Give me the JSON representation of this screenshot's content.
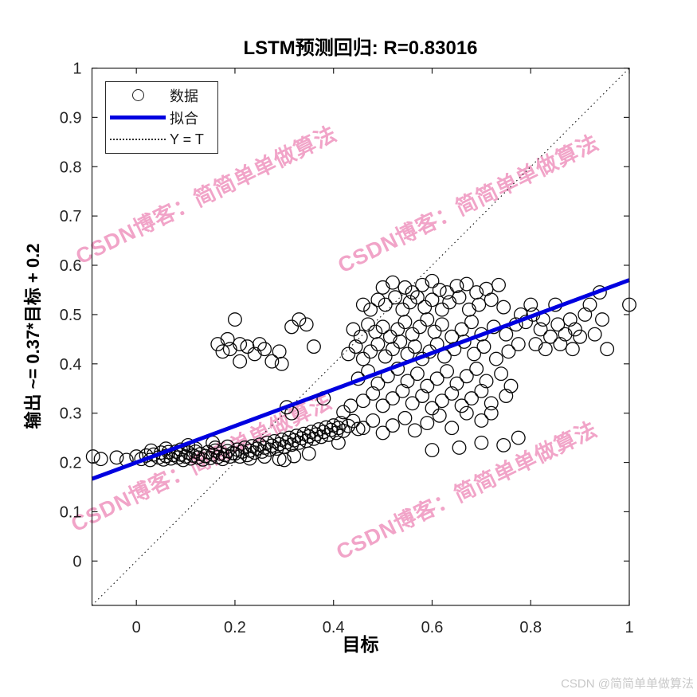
{
  "watermark": {
    "text": "CSDN博客：简简单单做算法",
    "color": "#EE94BE"
  },
  "attribution": "CSDN @简简单单做算法",
  "legend": {
    "items": [
      {
        "label": "数据",
        "marker": "circle-icon"
      },
      {
        "label": "拟合",
        "marker": "line-icon"
      },
      {
        "label": "Y = T",
        "marker": "dotted-line-icon"
      }
    ]
  },
  "chart_data": {
    "type": "scatter",
    "title": "LSTM预测回归: R=0.83016",
    "xlabel": "目标",
    "ylabel": "输出 ~= 0.37*目标 + 0.2",
    "xlim": [
      -0.09,
      1.0
    ],
    "ylim": [
      -0.09,
      1.0
    ],
    "grid": false,
    "legend_position": "top-left",
    "xticks": {
      "values": [
        0,
        0.2,
        0.4,
        0.6,
        0.8,
        1
      ],
      "labels": [
        "0",
        "0.2",
        "0.4",
        "0.6",
        "0.8",
        "1"
      ]
    },
    "yticks": {
      "values": [
        0,
        0.1,
        0.2,
        0.3,
        0.4,
        0.5,
        0.6,
        0.7,
        0.8,
        0.9,
        1
      ],
      "labels": [
        "0",
        "0.1",
        "0.2",
        "0.3",
        "0.4",
        "0.5",
        "0.6",
        "0.7",
        "0.8",
        "0.9",
        "1"
      ]
    },
    "fit": {
      "label": "拟合",
      "slope": 0.37,
      "intercept": 0.2,
      "color": "#0000e0",
      "width": 5
    },
    "identity": {
      "label": "Y = T",
      "color": "#222222"
    },
    "marker": {
      "color": "#0a0a0a",
      "radius": 8.3,
      "stroke_width": 1.3
    },
    "series": [
      {
        "name": "数据",
        "points": [
          [
            -0.088,
            0.212
          ],
          [
            -0.072,
            0.207
          ],
          [
            -0.04,
            0.21
          ],
          [
            -0.02,
            0.205
          ],
          [
            0.0,
            0.212
          ],
          [
            0.01,
            0.207
          ],
          [
            0.02,
            0.214
          ],
          [
            0.028,
            0.205
          ],
          [
            0.035,
            0.216
          ],
          [
            0.045,
            0.21
          ],
          [
            0.05,
            0.22
          ],
          [
            0.055,
            0.206
          ],
          [
            0.06,
            0.213
          ],
          [
            0.065,
            0.221
          ],
          [
            0.07,
            0.208
          ],
          [
            0.075,
            0.215
          ],
          [
            0.08,
            0.222
          ],
          [
            0.085,
            0.21
          ],
          [
            0.09,
            0.216
          ],
          [
            0.095,
            0.205
          ],
          [
            0.1,
            0.212
          ],
          [
            0.105,
            0.22
          ],
          [
            0.11,
            0.208
          ],
          [
            0.115,
            0.214
          ],
          [
            0.12,
            0.222
          ],
          [
            0.125,
            0.21
          ],
          [
            0.13,
            0.217
          ],
          [
            0.135,
            0.206
          ],
          [
            0.14,
            0.213
          ],
          [
            0.145,
            0.221
          ],
          [
            0.15,
            0.209
          ],
          [
            0.155,
            0.216
          ],
          [
            0.16,
            0.224
          ],
          [
            0.165,
            0.211
          ],
          [
            0.17,
            0.218
          ],
          [
            0.175,
            0.207
          ],
          [
            0.18,
            0.215
          ],
          [
            0.185,
            0.223
          ],
          [
            0.19,
            0.212
          ],
          [
            0.195,
            0.219
          ],
          [
            0.03,
            0.224
          ],
          [
            0.06,
            0.228
          ],
          [
            0.09,
            0.226
          ],
          [
            0.12,
            0.228
          ],
          [
            0.16,
            0.23
          ],
          [
            0.185,
            0.232
          ],
          [
            0.155,
            0.24
          ],
          [
            0.105,
            0.235
          ],
          [
            0.2,
            0.218
          ],
          [
            0.205,
            0.226
          ],
          [
            0.21,
            0.212
          ],
          [
            0.215,
            0.222
          ],
          [
            0.22,
            0.23
          ],
          [
            0.225,
            0.215
          ],
          [
            0.23,
            0.224
          ],
          [
            0.235,
            0.233
          ],
          [
            0.24,
            0.22
          ],
          [
            0.245,
            0.228
          ],
          [
            0.25,
            0.236
          ],
          [
            0.255,
            0.222
          ],
          [
            0.26,
            0.23
          ],
          [
            0.265,
            0.24
          ],
          [
            0.27,
            0.226
          ],
          [
            0.275,
            0.234
          ],
          [
            0.28,
            0.243
          ],
          [
            0.285,
            0.228
          ],
          [
            0.29,
            0.237
          ],
          [
            0.295,
            0.246
          ],
          [
            0.3,
            0.232
          ],
          [
            0.305,
            0.241
          ],
          [
            0.31,
            0.25
          ],
          [
            0.315,
            0.236
          ],
          [
            0.32,
            0.245
          ],
          [
            0.325,
            0.254
          ],
          [
            0.33,
            0.24
          ],
          [
            0.335,
            0.249
          ],
          [
            0.34,
            0.258
          ],
          [
            0.345,
            0.244
          ],
          [
            0.35,
            0.253
          ],
          [
            0.355,
            0.262
          ],
          [
            0.36,
            0.248
          ],
          [
            0.365,
            0.257
          ],
          [
            0.37,
            0.267
          ],
          [
            0.375,
            0.252
          ],
          [
            0.38,
            0.262
          ],
          [
            0.385,
            0.271
          ],
          [
            0.39,
            0.256
          ],
          [
            0.395,
            0.266
          ],
          [
            0.4,
            0.275
          ],
          [
            0.405,
            0.26
          ],
          [
            0.41,
            0.27
          ],
          [
            0.415,
            0.28
          ],
          [
            0.42,
            0.264
          ],
          [
            0.43,
            0.274
          ],
          [
            0.44,
            0.284
          ],
          [
            0.45,
            0.268
          ],
          [
            0.305,
            0.312
          ],
          [
            0.315,
            0.3
          ],
          [
            0.42,
            0.302
          ],
          [
            0.435,
            0.315
          ],
          [
            0.38,
            0.33
          ],
          [
            0.23,
            0.208
          ],
          [
            0.26,
            0.212
          ],
          [
            0.29,
            0.207
          ],
          [
            0.32,
            0.213
          ],
          [
            0.35,
            0.218
          ],
          [
            0.3,
            0.205
          ],
          [
            0.41,
            0.24
          ],
          [
            0.165,
            0.44
          ],
          [
            0.175,
            0.425
          ],
          [
            0.185,
            0.45
          ],
          [
            0.19,
            0.43
          ],
          [
            0.2,
            0.49
          ],
          [
            0.21,
            0.44
          ],
          [
            0.225,
            0.435
          ],
          [
            0.24,
            0.42
          ],
          [
            0.25,
            0.44
          ],
          [
            0.26,
            0.43
          ],
          [
            0.275,
            0.405
          ],
          [
            0.29,
            0.425
          ],
          [
            0.315,
            0.475
          ],
          [
            0.33,
            0.49
          ],
          [
            0.345,
            0.48
          ],
          [
            0.36,
            0.435
          ],
          [
            0.295,
            0.4
          ],
          [
            0.21,
            0.405
          ],
          [
            0.5,
            0.555
          ],
          [
            0.52,
            0.565
          ],
          [
            0.545,
            0.555
          ],
          [
            0.56,
            0.545
          ],
          [
            0.58,
            0.56
          ],
          [
            0.6,
            0.568
          ],
          [
            0.615,
            0.55
          ],
          [
            0.63,
            0.545
          ],
          [
            0.65,
            0.558
          ],
          [
            0.67,
            0.562
          ],
          [
            0.69,
            0.545
          ],
          [
            0.71,
            0.552
          ],
          [
            0.735,
            0.56
          ],
          [
            0.46,
            0.52
          ],
          [
            0.475,
            0.51
          ],
          [
            0.49,
            0.53
          ],
          [
            0.505,
            0.52
          ],
          [
            0.525,
            0.535
          ],
          [
            0.54,
            0.51
          ],
          [
            0.555,
            0.525
          ],
          [
            0.57,
            0.535
          ],
          [
            0.585,
            0.515
          ],
          [
            0.6,
            0.53
          ],
          [
            0.62,
            0.51
          ],
          [
            0.635,
            0.525
          ],
          [
            0.655,
            0.535
          ],
          [
            0.675,
            0.51
          ],
          [
            0.695,
            0.52
          ],
          [
            0.72,
            0.53
          ],
          [
            0.745,
            0.515
          ],
          [
            0.44,
            0.47
          ],
          [
            0.455,
            0.455
          ],
          [
            0.47,
            0.48
          ],
          [
            0.485,
            0.465
          ],
          [
            0.5,
            0.475
          ],
          [
            0.515,
            0.455
          ],
          [
            0.53,
            0.47
          ],
          [
            0.545,
            0.485
          ],
          [
            0.56,
            0.46
          ],
          [
            0.575,
            0.475
          ],
          [
            0.59,
            0.49
          ],
          [
            0.605,
            0.465
          ],
          [
            0.62,
            0.48
          ],
          [
            0.64,
            0.455
          ],
          [
            0.66,
            0.47
          ],
          [
            0.68,
            0.485
          ],
          [
            0.7,
            0.46
          ],
          [
            0.725,
            0.475
          ],
          [
            0.75,
            0.46
          ],
          [
            0.77,
            0.48
          ],
          [
            0.43,
            0.42
          ],
          [
            0.445,
            0.435
          ],
          [
            0.46,
            0.41
          ],
          [
            0.475,
            0.425
          ],
          [
            0.49,
            0.44
          ],
          [
            0.505,
            0.415
          ],
          [
            0.52,
            0.43
          ],
          [
            0.535,
            0.445
          ],
          [
            0.55,
            0.42
          ],
          [
            0.565,
            0.435
          ],
          [
            0.58,
            0.41
          ],
          [
            0.595,
            0.425
          ],
          [
            0.61,
            0.44
          ],
          [
            0.625,
            0.415
          ],
          [
            0.645,
            0.43
          ],
          [
            0.665,
            0.445
          ],
          [
            0.685,
            0.42
          ],
          [
            0.705,
            0.435
          ],
          [
            0.73,
            0.41
          ],
          [
            0.755,
            0.425
          ],
          [
            0.775,
            0.44
          ],
          [
            0.45,
            0.37
          ],
          [
            0.47,
            0.385
          ],
          [
            0.49,
            0.36
          ],
          [
            0.51,
            0.375
          ],
          [
            0.53,
            0.39
          ],
          [
            0.55,
            0.365
          ],
          [
            0.57,
            0.38
          ],
          [
            0.59,
            0.355
          ],
          [
            0.61,
            0.37
          ],
          [
            0.63,
            0.385
          ],
          [
            0.65,
            0.36
          ],
          [
            0.67,
            0.375
          ],
          [
            0.69,
            0.39
          ],
          [
            0.71,
            0.365
          ],
          [
            0.74,
            0.38
          ],
          [
            0.76,
            0.355
          ],
          [
            0.46,
            0.325
          ],
          [
            0.48,
            0.34
          ],
          [
            0.5,
            0.315
          ],
          [
            0.52,
            0.33
          ],
          [
            0.54,
            0.345
          ],
          [
            0.56,
            0.32
          ],
          [
            0.58,
            0.335
          ],
          [
            0.6,
            0.31
          ],
          [
            0.62,
            0.325
          ],
          [
            0.64,
            0.34
          ],
          [
            0.66,
            0.315
          ],
          [
            0.68,
            0.33
          ],
          [
            0.7,
            0.345
          ],
          [
            0.72,
            0.32
          ],
          [
            0.75,
            0.335
          ],
          [
            0.46,
            0.27
          ],
          [
            0.48,
            0.285
          ],
          [
            0.5,
            0.26
          ],
          [
            0.52,
            0.275
          ],
          [
            0.545,
            0.29
          ],
          [
            0.565,
            0.265
          ],
          [
            0.59,
            0.28
          ],
          [
            0.615,
            0.295
          ],
          [
            0.64,
            0.27
          ],
          [
            0.67,
            0.3
          ],
          [
            0.7,
            0.285
          ],
          [
            0.72,
            0.3
          ],
          [
            0.6,
            0.225
          ],
          [
            0.655,
            0.23
          ],
          [
            0.7,
            0.24
          ],
          [
            0.745,
            0.235
          ],
          [
            0.775,
            0.25
          ],
          [
            0.78,
            0.5
          ],
          [
            0.79,
            0.485
          ],
          [
            0.8,
            0.52
          ],
          [
            0.805,
            0.5
          ],
          [
            0.81,
            0.44
          ],
          [
            0.82,
            0.47
          ],
          [
            0.825,
            0.49
          ],
          [
            0.83,
            0.43
          ],
          [
            0.84,
            0.455
          ],
          [
            0.85,
            0.52
          ],
          [
            0.855,
            0.48
          ],
          [
            0.86,
            0.44
          ],
          [
            0.87,
            0.46
          ],
          [
            0.88,
            0.49
          ],
          [
            0.885,
            0.43
          ],
          [
            0.89,
            0.47
          ],
          [
            0.9,
            0.455
          ],
          [
            0.91,
            0.5
          ],
          [
            0.92,
            0.52
          ],
          [
            0.93,
            0.46
          ],
          [
            0.945,
            0.49
          ],
          [
            0.94,
            0.545
          ],
          [
            0.955,
            0.43
          ],
          [
            1.0,
            0.52
          ]
        ]
      }
    ]
  }
}
